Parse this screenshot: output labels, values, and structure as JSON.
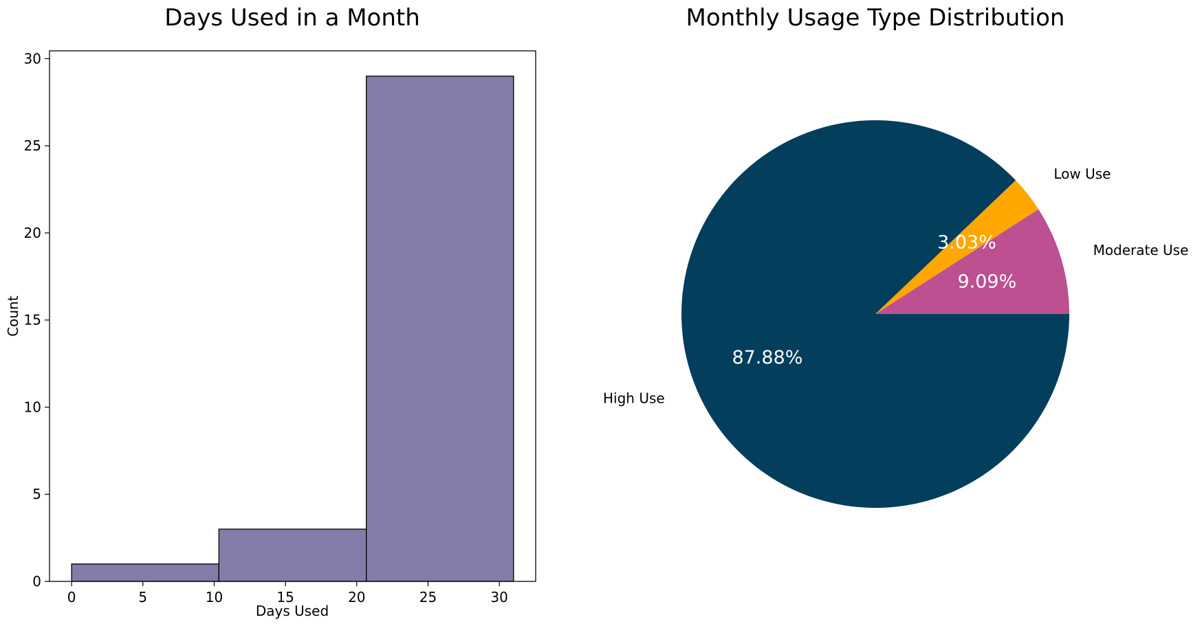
{
  "chart_data": [
    {
      "type": "bar",
      "title": "Days Used in a Month",
      "xlabel": "Days Used",
      "ylabel": "Count",
      "bins": [
        {
          "start": 0,
          "end": 10.33,
          "count": 1
        },
        {
          "start": 10.33,
          "end": 20.67,
          "count": 3
        },
        {
          "start": 20.67,
          "end": 31,
          "count": 29
        }
      ],
      "xlim": [
        -1.55,
        32.55
      ],
      "ylim": [
        0,
        30.45
      ],
      "xticks": [
        "0",
        "5",
        "10",
        "15",
        "20",
        "25",
        "30"
      ],
      "yticks": [
        "0",
        "5",
        "10",
        "15",
        "20",
        "25",
        "30"
      ],
      "bar_color": "#827DA8",
      "edge_color": "#000000",
      "grid": false
    },
    {
      "type": "pie",
      "title": "Monthly Usage Type Distribution",
      "slices": [
        {
          "label": "High Use",
          "value": 87.88,
          "pct_label": "87.88%",
          "color": "#033E5C"
        },
        {
          "label": "Low Use",
          "value": 3.03,
          "pct_label": "3.03%",
          "color": "#FFA600"
        },
        {
          "label": "Moderate Use",
          "value": 9.09,
          "pct_label": "9.09%",
          "color": "#BC5090"
        }
      ],
      "start_angle_deg": 0,
      "direction": "clockwise"
    }
  ]
}
